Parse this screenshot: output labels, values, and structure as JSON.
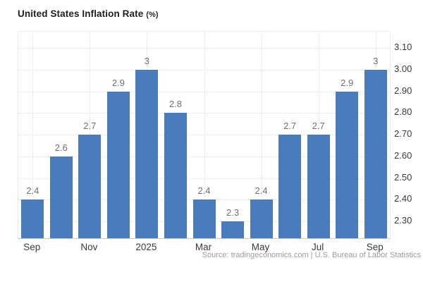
{
  "title": {
    "main": "United States Inflation Rate",
    "unit": "(%)"
  },
  "source": "Source: tradingeconomics.com | U.S. Bureau of Labor Statistics",
  "colors": {
    "bar": "#4a7bbc",
    "grid": "#dedede",
    "axis_line": "#c9c9c9",
    "plot_border": "#ececec",
    "value_label": "#6f6f6f",
    "tick_label": "#3a3a3a",
    "source_text": "#9a9a9a",
    "title_text": "#1f1f1f",
    "background": "#ffffff"
  },
  "chart_data": {
    "type": "bar",
    "title": "United States Inflation Rate (%)",
    "xlabel": "",
    "ylabel": "",
    "legend": "none",
    "grid": "dotted",
    "y_axis_side": "right",
    "categories": [
      "Sep",
      "",
      "Nov",
      "",
      "2025",
      "",
      "Mar",
      "",
      "May",
      "",
      "Jul",
      "",
      "Sep"
    ],
    "values": [
      2.4,
      2.6,
      2.7,
      2.9,
      3,
      2.8,
      2.4,
      2.3,
      2.4,
      2.7,
      2.7,
      2.9,
      3
    ],
    "bar_labels": [
      "2.4",
      "2.6",
      "2.7",
      "2.9",
      "3",
      "2.8",
      "2.4",
      "2.3",
      "2.4",
      "2.7",
      "2.7",
      "2.9",
      "3"
    ],
    "x_tick_labels": [
      "Sep",
      "Nov",
      "2025",
      "Mar",
      "May",
      "Jul",
      "Sep"
    ],
    "y_ticks": [
      2.3,
      2.4,
      2.5,
      2.6,
      2.7,
      2.8,
      2.9,
      3.0,
      3.1
    ],
    "y_tick_labels": [
      "2.30",
      "2.40",
      "2.50",
      "2.60",
      "2.70",
      "2.80",
      "2.90",
      "3.00",
      "3.10"
    ],
    "ylim": [
      2.222,
      3.176
    ]
  }
}
